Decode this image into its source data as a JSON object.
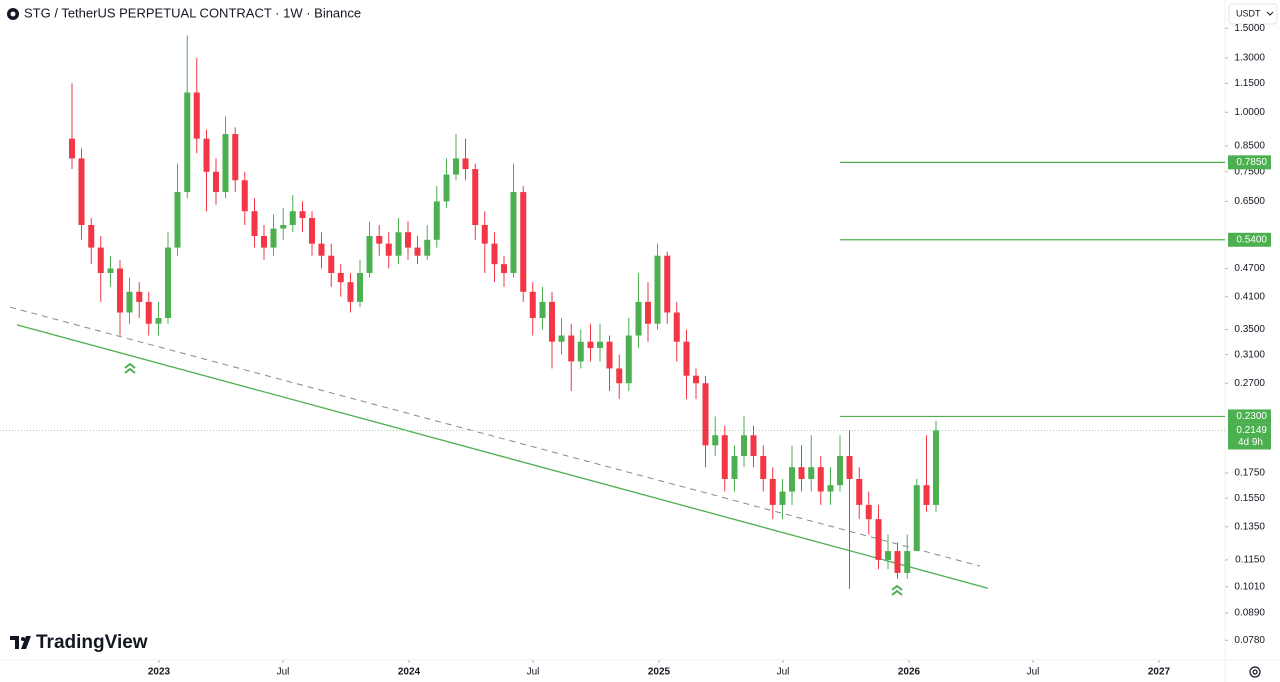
{
  "chart_data": {
    "type": "candlestick",
    "title": "STG / TetherUS PERPETUAL CONTRACT · 1W · Binance",
    "currency": "USDT",
    "branding": "TradingView",
    "log_scale": true,
    "grid": false,
    "up_color": "#4caf50",
    "down_color": "#f23645",
    "x": [
      2022.652,
      2022.69,
      2022.729,
      2022.767,
      2022.806,
      2022.844,
      2022.882,
      2022.921,
      2022.959,
      2022.998,
      2023.036,
      2023.074,
      2023.113,
      2023.151,
      2023.19,
      2023.228,
      2023.266,
      2023.305,
      2023.343,
      2023.382,
      2023.42,
      2023.458,
      2023.497,
      2023.535,
      2023.574,
      2023.612,
      2023.65,
      2023.689,
      2023.727,
      2023.766,
      2023.804,
      2023.842,
      2023.881,
      2023.919,
      2023.958,
      2023.996,
      2024.034,
      2024.073,
      2024.111,
      2024.15,
      2024.188,
      2024.226,
      2024.265,
      2024.303,
      2024.342,
      2024.38,
      2024.418,
      2024.457,
      2024.495,
      2024.534,
      2024.572,
      2024.61,
      2024.649,
      2024.687,
      2024.726,
      2024.764,
      2024.802,
      2024.841,
      2024.879,
      2024.918,
      2024.956,
      2024.994,
      2025.033,
      2025.071,
      2025.11,
      2025.148,
      2025.186,
      2025.225,
      2025.263,
      2025.302,
      2025.34,
      2025.378,
      2025.417,
      2025.455,
      2025.494,
      2025.532,
      2025.57,
      2025.609,
      2025.647,
      2025.686,
      2025.724,
      2025.762,
      2025.801,
      2025.839,
      2025.878,
      2025.916,
      2025.954,
      2025.993,
      2026.031,
      2026.07,
      2026.108
    ],
    "open": [
      0.88,
      0.8,
      0.58,
      0.52,
      0.46,
      0.47,
      0.38,
      0.42,
      0.4,
      0.36,
      0.37,
      0.52,
      0.68,
      1.1,
      0.88,
      0.75,
      0.68,
      0.9,
      0.72,
      0.62,
      0.55,
      0.52,
      0.57,
      0.58,
      0.62,
      0.6,
      0.53,
      0.5,
      0.46,
      0.44,
      0.4,
      0.46,
      0.55,
      0.53,
      0.5,
      0.56,
      0.52,
      0.5,
      0.54,
      0.65,
      0.74,
      0.8,
      0.76,
      0.58,
      0.53,
      0.48,
      0.46,
      0.68,
      0.42,
      0.37,
      0.4,
      0.33,
      0.34,
      0.3,
      0.33,
      0.32,
      0.33,
      0.29,
      0.27,
      0.34,
      0.4,
      0.36,
      0.5,
      0.38,
      0.33,
      0.28,
      0.27,
      0.2,
      0.21,
      0.17,
      0.19,
      0.21,
      0.19,
      0.17,
      0.15,
      0.16,
      0.18,
      0.17,
      0.18,
      0.16,
      0.165,
      0.19,
      0.17,
      0.15,
      0.14,
      0.115,
      0.12,
      0.108,
      0.12,
      0.165,
      0.15
    ],
    "high": [
      1.15,
      0.84,
      0.6,
      0.55,
      0.5,
      0.49,
      0.45,
      0.44,
      0.42,
      0.4,
      0.56,
      0.78,
      1.45,
      1.3,
      0.92,
      0.8,
      0.98,
      0.93,
      0.75,
      0.66,
      0.58,
      0.61,
      0.63,
      0.67,
      0.65,
      0.62,
      0.56,
      0.53,
      0.48,
      0.46,
      0.49,
      0.59,
      0.58,
      0.56,
      0.6,
      0.59,
      0.55,
      0.58,
      0.7,
      0.8,
      0.9,
      0.88,
      0.78,
      0.62,
      0.56,
      0.5,
      0.78,
      0.7,
      0.44,
      0.43,
      0.42,
      0.37,
      0.36,
      0.35,
      0.36,
      0.36,
      0.34,
      0.31,
      0.37,
      0.46,
      0.44,
      0.53,
      0.51,
      0.4,
      0.35,
      0.29,
      0.28,
      0.23,
      0.22,
      0.2,
      0.23,
      0.22,
      0.2,
      0.18,
      0.17,
      0.2,
      0.2,
      0.21,
      0.19,
      0.18,
      0.21,
      0.215,
      0.18,
      0.16,
      0.15,
      0.13,
      0.125,
      0.13,
      0.17,
      0.21,
      0.225
    ],
    "low": [
      0.76,
      0.54,
      0.48,
      0.4,
      0.43,
      0.34,
      0.36,
      0.37,
      0.34,
      0.34,
      0.36,
      0.5,
      0.66,
      0.82,
      0.62,
      0.64,
      0.66,
      0.68,
      0.58,
      0.52,
      0.49,
      0.5,
      0.54,
      0.56,
      0.56,
      0.5,
      0.47,
      0.43,
      0.41,
      0.38,
      0.39,
      0.45,
      0.5,
      0.47,
      0.48,
      0.49,
      0.48,
      0.49,
      0.52,
      0.63,
      0.72,
      0.72,
      0.54,
      0.46,
      0.44,
      0.43,
      0.45,
      0.4,
      0.34,
      0.35,
      0.29,
      0.31,
      0.26,
      0.29,
      0.3,
      0.3,
      0.26,
      0.25,
      0.26,
      0.32,
      0.33,
      0.35,
      0.36,
      0.3,
      0.25,
      0.25,
      0.18,
      0.19,
      0.16,
      0.16,
      0.18,
      0.18,
      0.16,
      0.14,
      0.14,
      0.15,
      0.16,
      0.16,
      0.15,
      0.15,
      0.16,
      0.1,
      0.14,
      0.13,
      0.11,
      0.11,
      0.105,
      0.105,
      0.12,
      0.145,
      0.145
    ],
    "close": [
      0.8,
      0.58,
      0.52,
      0.46,
      0.47,
      0.38,
      0.42,
      0.4,
      0.36,
      0.37,
      0.52,
      0.68,
      1.1,
      0.88,
      0.75,
      0.68,
      0.9,
      0.72,
      0.62,
      0.55,
      0.52,
      0.57,
      0.58,
      0.62,
      0.6,
      0.53,
      0.5,
      0.46,
      0.44,
      0.4,
      0.46,
      0.55,
      0.53,
      0.5,
      0.56,
      0.52,
      0.5,
      0.54,
      0.65,
      0.74,
      0.8,
      0.76,
      0.58,
      0.53,
      0.48,
      0.46,
      0.68,
      0.42,
      0.37,
      0.4,
      0.33,
      0.34,
      0.3,
      0.33,
      0.32,
      0.33,
      0.29,
      0.27,
      0.34,
      0.4,
      0.36,
      0.5,
      0.38,
      0.33,
      0.28,
      0.27,
      0.2,
      0.21,
      0.17,
      0.19,
      0.21,
      0.19,
      0.17,
      0.15,
      0.16,
      0.18,
      0.17,
      0.18,
      0.16,
      0.165,
      0.19,
      0.17,
      0.15,
      0.14,
      0.115,
      0.12,
      0.108,
      0.12,
      0.165,
      0.15,
      0.2149
    ],
    "xlim": [
      2022.364,
      2027.264
    ],
    "ylim": [
      0.0709,
      1.72
    ],
    "xticks": [
      2023,
      {
        "value": 2023.496,
        "label": "Jul"
      },
      2024,
      {
        "value": 2024.496,
        "label": "Jul"
      },
      2025,
      {
        "value": 2025.496,
        "label": "Jul"
      },
      2026,
      {
        "value": 2026.496,
        "label": "Jul"
      },
      2027
    ],
    "yticks": [
      {
        "value": 1.5,
        "label": "1.5000"
      },
      {
        "value": 1.3,
        "label": "1.3000"
      },
      {
        "value": 1.15,
        "label": "1.1500"
      },
      {
        "value": 1,
        "label": "1.0000"
      },
      {
        "value": 0.85,
        "label": "0.8500"
      },
      {
        "value": 0.75,
        "label": "0.7500"
      },
      {
        "value": 0.65,
        "label": "0.6500"
      },
      {
        "value": 0.47,
        "label": "0.4700"
      },
      {
        "value": 0.41,
        "label": "0.4100"
      },
      {
        "value": 0.35,
        "label": "0.3500"
      },
      {
        "value": 0.31,
        "label": "0.3100"
      },
      {
        "value": 0.27,
        "label": "0.2700"
      },
      {
        "value": 0.175,
        "label": "0.1750"
      },
      {
        "value": 0.155,
        "label": "0.1550"
      },
      {
        "value": 0.135,
        "label": "0.1350"
      },
      {
        "value": 0.115,
        "label": "0.1150"
      },
      {
        "value": 0.101,
        "label": "0.1010"
      },
      {
        "value": 0.089,
        "label": "0.0890"
      },
      {
        "value": 0.078,
        "label": "0.0780"
      }
    ],
    "levels": [
      {
        "value": 0.785,
        "label": "0.7850",
        "x_start": 2025.724
      },
      {
        "value": 0.54,
        "label": "0.5400",
        "x_start": 2025.724
      },
      {
        "value": 0.23,
        "label": "0.2300",
        "x_start": 2025.724
      }
    ],
    "last_price": {
      "value": 0.2149,
      "label": "0.2149",
      "countdown": "4d 9h"
    },
    "trendlines": [
      {
        "style": "solid",
        "x": [
          2022.432,
          2026.316
        ],
        "y": [
          0.358,
          0.1003
        ]
      },
      {
        "style": "dashed",
        "x": [
          2022.404,
          2026.284
        ],
        "y": [
          0.39,
          0.1116
        ]
      }
    ]
  }
}
